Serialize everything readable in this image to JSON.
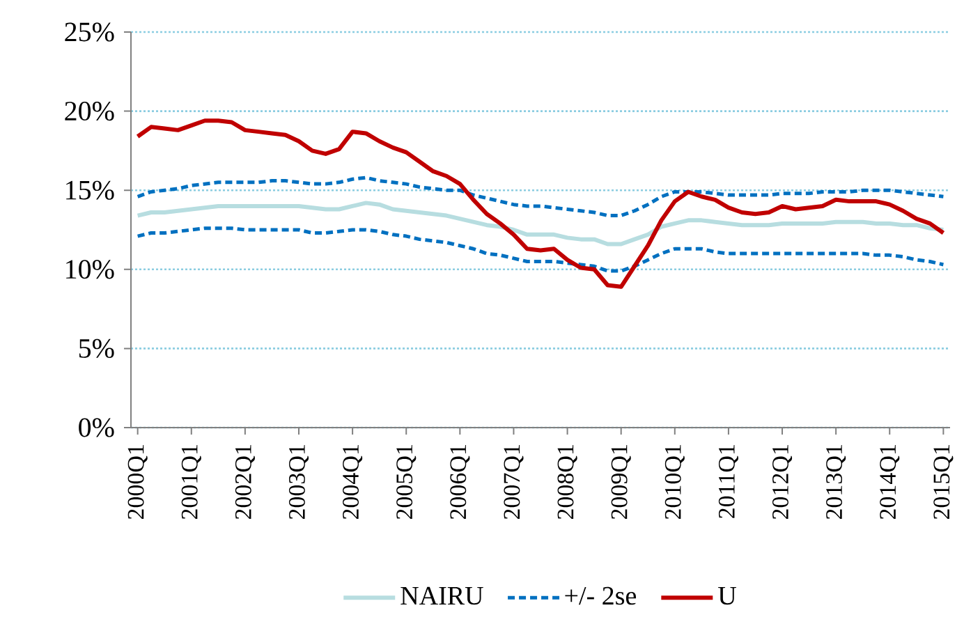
{
  "chart_data": {
    "type": "line",
    "categories": [
      "2000Q1",
      null,
      null,
      null,
      "2001Q1",
      null,
      null,
      null,
      "2002Q1",
      null,
      null,
      null,
      "2003Q1",
      null,
      null,
      null,
      "2004Q1",
      null,
      null,
      null,
      "2005Q1",
      null,
      null,
      null,
      "2006Q1",
      null,
      null,
      null,
      "2007Q1",
      null,
      null,
      null,
      "2008Q1",
      null,
      null,
      null,
      "2009Q1",
      null,
      null,
      null,
      "2010Q1",
      null,
      null,
      null,
      "2011Q1",
      null,
      null,
      null,
      "2012Q1",
      null,
      null,
      null,
      "2013Q1",
      null,
      null,
      null,
      "2014Q1",
      null,
      null,
      null,
      "2015Q1"
    ],
    "series": [
      {
        "name": "NAIRU",
        "color": "#b7dde0",
        "line_style": "solid",
        "values": [
          13.4,
          13.6,
          13.6,
          13.7,
          13.8,
          13.9,
          14.0,
          14.0,
          14.0,
          14.0,
          14.0,
          14.0,
          14.0,
          13.9,
          13.8,
          13.8,
          14.0,
          14.2,
          14.1,
          13.8,
          13.7,
          13.6,
          13.5,
          13.4,
          13.2,
          13.0,
          12.8,
          12.7,
          12.5,
          12.2,
          12.2,
          12.2,
          12.0,
          11.9,
          11.9,
          11.6,
          11.6,
          11.9,
          12.2,
          12.7,
          12.9,
          13.1,
          13.1,
          13.0,
          12.9,
          12.8,
          12.8,
          12.8,
          12.9,
          12.9,
          12.9,
          12.9,
          13.0,
          13.0,
          13.0,
          12.9,
          12.9,
          12.8,
          12.8,
          12.6,
          12.5
        ]
      },
      {
        "name": "+/- 2se",
        "color": "#0070c0",
        "line_style": "dashed",
        "values": [
          14.6,
          14.9,
          15.0,
          15.1,
          15.3,
          15.4,
          15.5,
          15.5,
          15.5,
          15.5,
          15.6,
          15.6,
          15.5,
          15.4,
          15.4,
          15.5,
          15.7,
          15.8,
          15.6,
          15.5,
          15.4,
          15.2,
          15.1,
          15.0,
          15.0,
          14.7,
          14.5,
          14.3,
          14.1,
          14.0,
          14.0,
          13.9,
          13.8,
          13.7,
          13.6,
          13.4,
          13.4,
          13.7,
          14.1,
          14.6,
          14.9,
          14.9,
          14.9,
          14.8,
          14.7,
          14.7,
          14.7,
          14.7,
          14.8,
          14.8,
          14.8,
          14.9,
          14.9,
          14.9,
          15.0,
          15.0,
          15.0,
          14.9,
          14.8,
          14.7,
          14.6
        ]
      },
      {
        "color": "#0070c0",
        "line_style": "dashed",
        "values": [
          12.1,
          12.3,
          12.3,
          12.4,
          12.5,
          12.6,
          12.6,
          12.6,
          12.5,
          12.5,
          12.5,
          12.5,
          12.5,
          12.3,
          12.3,
          12.4,
          12.5,
          12.5,
          12.4,
          12.2,
          12.1,
          11.9,
          11.8,
          11.7,
          11.5,
          11.3,
          11.0,
          10.9,
          10.7,
          10.5,
          10.5,
          10.5,
          10.4,
          10.3,
          10.2,
          9.9,
          9.9,
          10.2,
          10.6,
          11.0,
          11.3,
          11.3,
          11.3,
          11.1,
          11.0,
          11.0,
          11.0,
          11.0,
          11.0,
          11.0,
          11.0,
          11.0,
          11.0,
          11.0,
          11.0,
          10.9,
          10.9,
          10.8,
          10.6,
          10.5,
          10.3
        ]
      },
      {
        "name": "U",
        "color": "#c00000",
        "line_style": "solid",
        "values": [
          18.4,
          19.0,
          18.9,
          18.8,
          19.1,
          19.4,
          19.4,
          19.3,
          18.8,
          18.7,
          18.6,
          18.5,
          18.1,
          17.5,
          17.3,
          17.6,
          18.7,
          18.6,
          18.1,
          17.7,
          17.4,
          16.8,
          16.2,
          15.9,
          15.4,
          14.4,
          13.5,
          12.9,
          12.2,
          11.3,
          11.2,
          11.3,
          10.6,
          10.1,
          10.0,
          9.0,
          8.9,
          10.2,
          11.5,
          13.1,
          14.3,
          14.9,
          14.6,
          14.4,
          13.9,
          13.6,
          13.5,
          13.6,
          14.0,
          13.8,
          13.9,
          14.0,
          14.4,
          14.3,
          14.3,
          14.3,
          14.1,
          13.7,
          13.2,
          12.9,
          12.3
        ]
      }
    ],
    "ylim": [
      0,
      25
    ],
    "yticks": [
      {
        "value": 0,
        "label": "0%"
      },
      {
        "value": 5,
        "label": "5%"
      },
      {
        "value": 10,
        "label": "10%"
      },
      {
        "value": 15,
        "label": "15%"
      },
      {
        "value": 20,
        "label": "20%"
      },
      {
        "value": 25,
        "label": "25%"
      }
    ],
    "grid": "y",
    "legend": "bottom"
  }
}
